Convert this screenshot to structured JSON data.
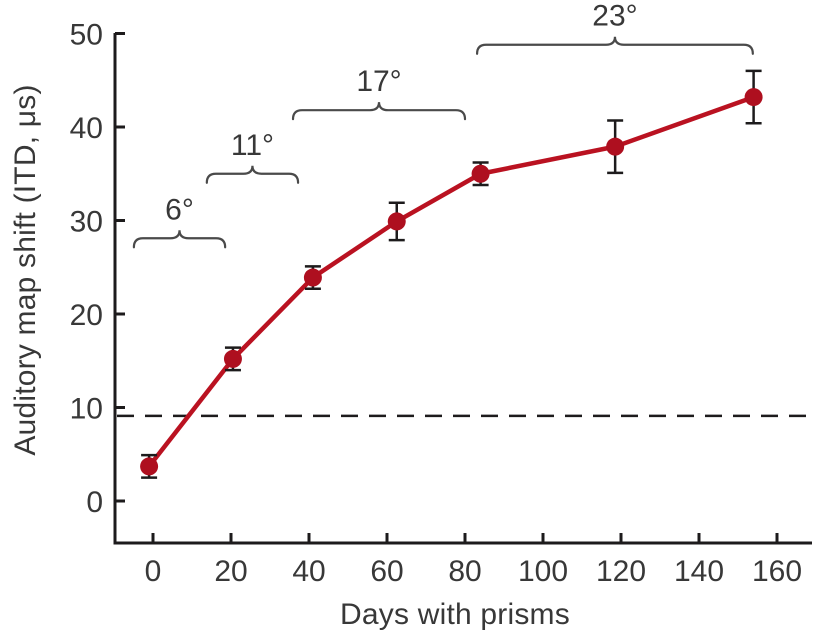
{
  "figure": {
    "background": "#ffffff"
  },
  "chart_data": {
    "type": "line",
    "title": "",
    "xlabel": "Days with prisms",
    "ylabel": "Auditory map shift (ITD, μs)",
    "xlim": [
      -9.7,
      169
    ],
    "ylim": [
      -4.5,
      50
    ],
    "xticks": [
      0,
      20,
      40,
      60,
      80,
      100,
      120,
      140,
      160
    ],
    "yticks": [
      0,
      10,
      20,
      30,
      40,
      50
    ],
    "grid": false,
    "legend": false,
    "axis_color": "#1d1b1c",
    "text_color": "#383838",
    "brace_color": "#4a4a4a",
    "errorbar_color": "#1d1b1c",
    "series": [
      {
        "name": "auditory-map-shift",
        "line_color": "#ba1221",
        "marker_color": "#ae0f1f",
        "marker": "circle",
        "points": [
          {
            "x": -1,
            "y": 3.7,
            "yerr": 1.2
          },
          {
            "x": 20.5,
            "y": 15.2,
            "yerr": 1.2
          },
          {
            "x": 41,
            "y": 23.9,
            "yerr": 1.2
          },
          {
            "x": 62.5,
            "y": 29.9,
            "yerr": 2.0
          },
          {
            "x": 84,
            "y": 35.0,
            "yerr": 1.2
          },
          {
            "x": 118.5,
            "y": 37.9,
            "yerr": 2.8
          },
          {
            "x": 154,
            "y": 43.2,
            "yerr": 2.8
          }
        ]
      }
    ],
    "reference_line": {
      "y": 9.1,
      "style": "dashed",
      "color": "#1d1b1c"
    },
    "annotations": [
      {
        "label": "6°",
        "x_start": -4.9,
        "x_end": 18.5,
        "y": 28.1
      },
      {
        "label": "11°",
        "x_start": 13.8,
        "x_end": 37.2,
        "y": 35.0
      },
      {
        "label": "17°",
        "x_start": 35.9,
        "x_end": 80.0,
        "y": 41.8
      },
      {
        "label": "23°",
        "x_start": 83.1,
        "x_end": 153.8,
        "y": 48.8
      }
    ]
  }
}
